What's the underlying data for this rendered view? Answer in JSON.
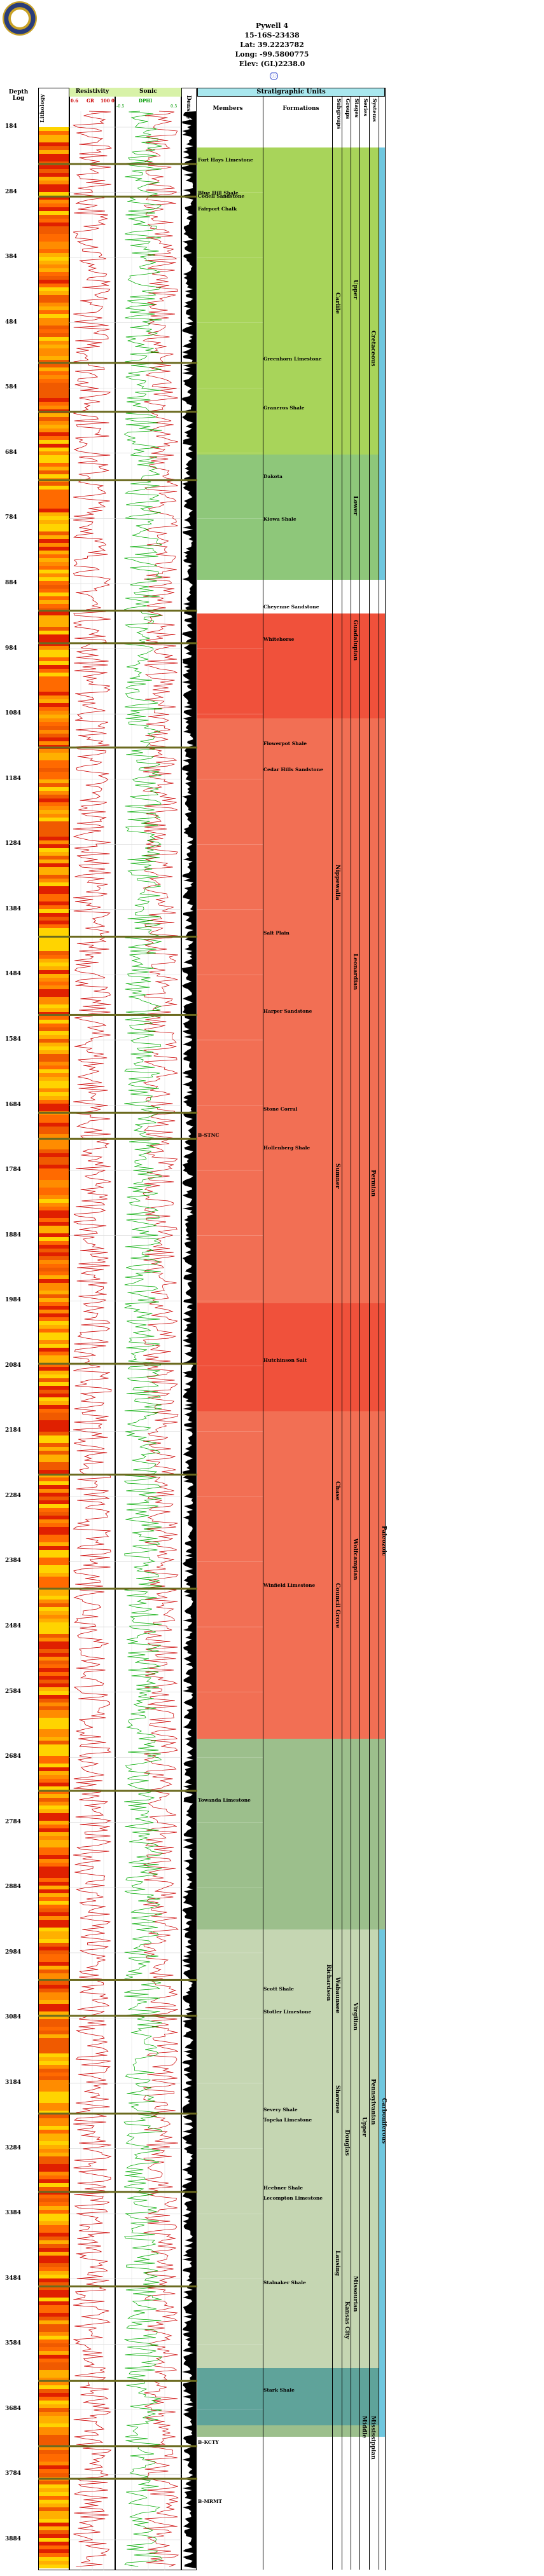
{
  "header": {
    "well_name": "Pywell 4",
    "location": "15-16S-23438",
    "lat": "Lat: 39.2223782",
    "long": "Long: -99.5800775",
    "elev": "Elev: (GL)2238.0",
    "link_icon": "info-circle-icon"
  },
  "columns": {
    "depth_title_1": "Depth",
    "depth_title_2": "Log",
    "lithology": "Lithology",
    "resistivity_title": "Resistivity",
    "resistivity_scale_left": "0.6",
    "resistivity_scale_mid": "GR",
    "resistivity_scale_right": "100 0",
    "sonic_title": "Sonic",
    "sonic_label": "DPHI",
    "sonic_min": "-0.5",
    "sonic_max": "0.5",
    "density_title": "Density",
    "density_scale": "0.0",
    "strat_title": "Stratigraphic Units",
    "members": "Members",
    "formations": "Formations",
    "subgroups": "Subgroups",
    "groups": "Groups",
    "stages": "Stages",
    "series": "Series",
    "systems": "Systems"
  },
  "depths": [
    "184",
    "284",
    "384",
    "484",
    "584",
    "684",
    "784",
    "884",
    "984",
    "1084",
    "1184",
    "1284",
    "1384",
    "1484",
    "1584",
    "1684",
    "1784",
    "1884",
    "1984",
    "2084",
    "2184",
    "2284",
    "2384",
    "2484",
    "2584",
    "2684",
    "2784",
    "2884",
    "2984",
    "3084",
    "3184",
    "3284",
    "3384",
    "3484",
    "3584",
    "3684",
    "3784",
    "3884"
  ],
  "members": [
    {
      "label": "Fort Hays Limestone"
    },
    {
      "label": "Blue Hill Shale"
    },
    {
      "label": "Codell Sandstone"
    },
    {
      "label": "Fairport Chalk"
    },
    {
      "label": "Greenhorn Limestone"
    },
    {
      "label": "Graneros Shale"
    },
    {
      "label": "Dakota"
    },
    {
      "label": "Kiowa Shale"
    },
    {
      "label": "Cheyenne Sandstone"
    },
    {
      "label": "Whitehorse"
    },
    {
      "label": "Flowerpot Shale"
    },
    {
      "label": "Cedar Hills Sandstone"
    },
    {
      "label": "Salt Plain"
    },
    {
      "label": "Harper Sandstone"
    },
    {
      "label": "Stone Corral"
    },
    {
      "label": "B-STNC"
    },
    {
      "label": "Hollenberg Shale"
    },
    {
      "label": "Hutchinson Salt"
    },
    {
      "label": "Winfield Limestone"
    },
    {
      "label": "Towanda Limestone"
    },
    {
      "label": "Scott Shale"
    },
    {
      "label": "Stotler Limestone"
    },
    {
      "label": "Severy Shale"
    },
    {
      "label": "Topeka Limestone"
    },
    {
      "label": "Heebner Shale"
    },
    {
      "label": "Lecompton Limestone"
    },
    {
      "label": "Stalnaker Shale"
    },
    {
      "label": "Stark Shale"
    },
    {
      "label": "B-KCTY"
    },
    {
      "label": "B-MRMT"
    }
  ],
  "units": {
    "niobrara": "Niobrara",
    "carlile": "Carlile",
    "colorado": "Colorado",
    "upper": "Upper",
    "cretaceous": "Cretaceous",
    "lower": "Lower",
    "dakota_grp": "Dakota",
    "cimarronian": "Cimarronian",
    "guadalupian": "Guadalupian",
    "nippewalla": "Nippewalla",
    "sumner": "Sumner",
    "leonardian": "Leonardian",
    "chase": "Chase",
    "council_grove": "Council Grove",
    "wolfcampian": "Wolfcampian",
    "permian": "Permian",
    "paleozoic": "Paleozoic",
    "richardson": "Richardson",
    "wabaunsee": "Wabaunsee",
    "virgilian": "Virgilian",
    "shawnee": "Shawnee",
    "douglas": "Douglas",
    "pennsylvanian": "Pennsylvanian",
    "lansing": "Lansing",
    "kansas_city": "Kansas City",
    "missourian": "Missourian",
    "upper_penn": "Upper",
    "des_moines": "Desmoinesian",
    "middle": "Middle",
    "carboniferous": "Carboniferous",
    "mississippian": "Mississippian"
  },
  "colors": {
    "cretaceous_green": "#a8d45a",
    "cretaceous_light": "#8ec77a",
    "permian_red": "#f0513b",
    "permian_light": "#f26f54",
    "penn_green": "#9cbf8c",
    "penn_light": "#c5d6b2",
    "miss_teal": "#5fa39a",
    "header_cyan": "#a9e7ee",
    "resist_curve": "#cc0000",
    "sonic_curve": "#00aa00",
    "marker": "#6b6a1f"
  }
}
